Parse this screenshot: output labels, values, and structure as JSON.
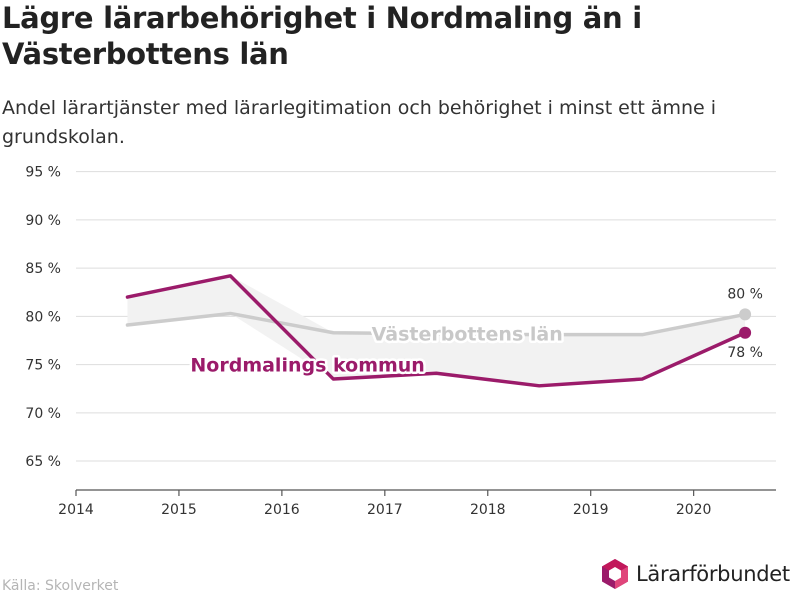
{
  "header": {
    "title": "Lägre lärarbehörighet i Nordmaling än i Västerbottens län",
    "subtitle": "Andel lärartjänster med lärarlegitimation och behörighet i minst ett ämne i grundskolan."
  },
  "footer": {
    "source": "Källa: Skolverket",
    "logo_text": "Lärarförbundet"
  },
  "chart_data": {
    "type": "line",
    "xlim": [
      2014,
      2020.8
    ],
    "ylim": [
      62,
      96
    ],
    "x_ticks": [
      2014,
      2015,
      2016,
      2017,
      2018,
      2019,
      2020
    ],
    "x_tick_labels": [
      "2014",
      "2015",
      "2016",
      "2017",
      "2018",
      "2019",
      "2020"
    ],
    "y_ticks": [
      65,
      70,
      75,
      80,
      85,
      90,
      95
    ],
    "y_tick_labels": [
      "65 %",
      "70 %",
      "75 %",
      "80 %",
      "85 %",
      "90 %",
      "95 %"
    ],
    "grid": true,
    "series": [
      {
        "name": "Västerbottens län",
        "color": "#cccccc",
        "x": [
          2014.5,
          2015.5,
          2016.5,
          2017.5,
          2018.5,
          2019.5,
          2020.5
        ],
        "values": [
          79.1,
          80.3,
          78.3,
          78.2,
          78.1,
          78.1,
          80.2
        ],
        "end_label": "80 %"
      },
      {
        "name": "Nordmalings kommun",
        "color": "#9b1b6a",
        "x": [
          2014.5,
          2015.5,
          2016.5,
          2017.5,
          2018.5,
          2019.5,
          2020.5
        ],
        "values": [
          82.0,
          84.2,
          73.5,
          74.1,
          72.8,
          73.5,
          78.3
        ],
        "end_label": "78 %"
      }
    ]
  },
  "colors": {
    "accent": "#9b1b6a",
    "region_line": "#cccccc",
    "gap_fill": "#f2f2f2",
    "grid": "#dddddd"
  }
}
